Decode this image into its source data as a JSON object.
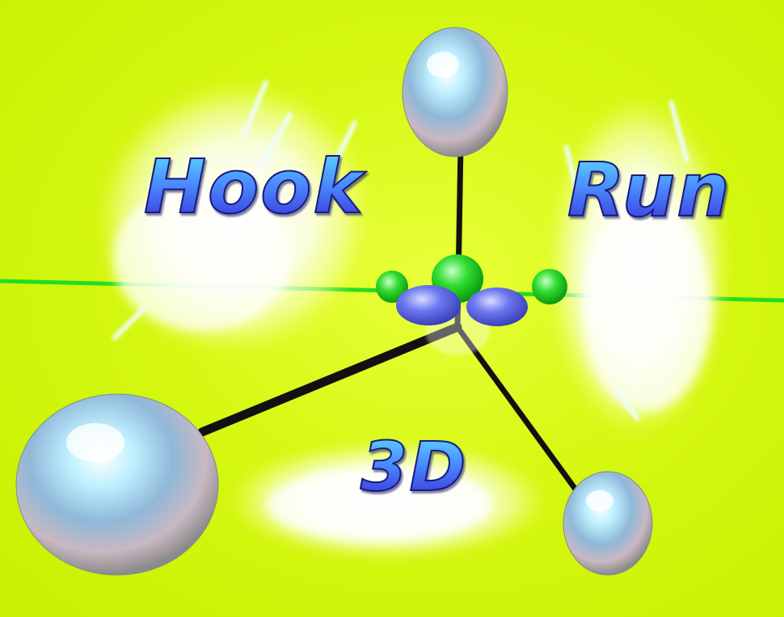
{
  "scene": {
    "background_color": "#d4f70f",
    "axis_x_color": "#22dd22",
    "axis_arm_color": "#111111",
    "sphere_color": "#dfe8f2",
    "option_glow_color": "#ffffff",
    "title_gradient": [
      "#5fd8ff",
      "#3a32d8"
    ]
  },
  "menu": {
    "hook_label": "Hook",
    "run_label": "Run",
    "three_d_label": "3D"
  },
  "icons": {
    "center_gizmo": "axis-gizmo-icon",
    "handles": [
      "top-sphere-handle",
      "left-sphere-handle",
      "right-sphere-handle"
    ]
  }
}
